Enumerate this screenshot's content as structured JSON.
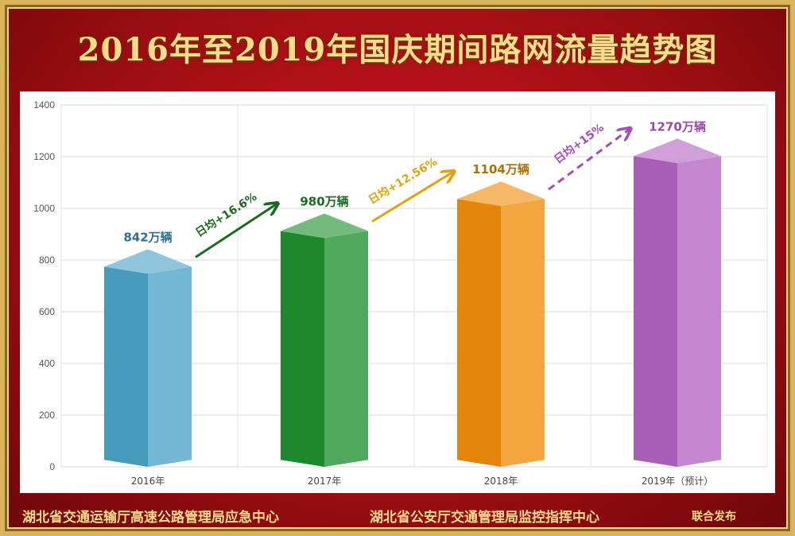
{
  "title": "2016年至2019年国庆期间路网流量趋势图",
  "footer": {
    "org1": "湖北省交通运输厅高速公路管理局应急中心",
    "org2": "湖北省公安厅交通管理局监控指挥中心",
    "joint": "联合发布"
  },
  "chart_data": {
    "type": "bar",
    "categories": [
      "2016年",
      "2017年",
      "2018年",
      "2019年（预计）"
    ],
    "values": [
      842,
      980,
      1104,
      1270
    ],
    "value_labels": [
      "842万辆",
      "980万辆",
      "1104万辆",
      "1270万辆"
    ],
    "ylim": [
      0,
      1400
    ],
    "yticks": [
      0,
      200,
      400,
      600,
      800,
      1000,
      1200,
      1400
    ],
    "grid": true,
    "bar_colors": [
      "#4aa3c7",
      "#1e8f2e",
      "#f08b0a",
      "#b364c0"
    ],
    "label_colors": [
      "#2f6f94",
      "#1a6b1f",
      "#b07100",
      "#9a4aa8"
    ],
    "growth_annotations": [
      {
        "text": "日均+16.6%",
        "color": "#1a6b1f",
        "dashed": false
      },
      {
        "text": "日均+12.56%",
        "color": "#e0a40e",
        "dashed": false
      },
      {
        "text": "日均+15%",
        "color": "#a34eb3",
        "dashed": true
      }
    ]
  }
}
